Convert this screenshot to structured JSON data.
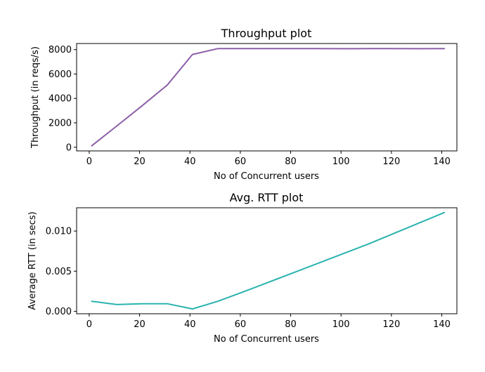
{
  "chart_data": [
    {
      "type": "line",
      "title": "Throughput plot",
      "xlabel": "No of Concurrent users",
      "ylabel": "Throughput (in reqs/s)",
      "xlim": [
        -5,
        146
      ],
      "ylim": [
        -300,
        8500
      ],
      "xticks": [
        0,
        20,
        40,
        60,
        80,
        100,
        120,
        140
      ],
      "yticks": [
        0,
        2000,
        4000,
        6000,
        8000
      ],
      "yticklabels": [
        "0",
        "2000",
        "4000",
        "6000",
        "8000"
      ],
      "grid": false,
      "series": [
        {
          "color": "#8c5fa8",
          "x": [
            1,
            11,
            21,
            31,
            41,
            51,
            61,
            71,
            81,
            91,
            101,
            111,
            121,
            131,
            141
          ],
          "y": [
            120,
            1750,
            3400,
            5100,
            7600,
            8080,
            8085,
            8080,
            8080,
            8080,
            8075,
            8080,
            8085,
            8075,
            8080
          ]
        }
      ]
    },
    {
      "type": "line",
      "title": "Avg. RTT plot",
      "xlabel": "No of Concurrent users",
      "ylabel": "Average RTT (in secs)",
      "xlim": [
        -5,
        146
      ],
      "ylim": [
        -0.0003,
        0.0129
      ],
      "xticks": [
        0,
        20,
        40,
        60,
        80,
        100,
        120,
        140
      ],
      "yticks": [
        0.0,
        0.005,
        0.01
      ],
      "yticklabels": [
        "0.000",
        "0.005",
        "0.010"
      ],
      "grid": false,
      "series": [
        {
          "color": "#2ab3b0",
          "x": [
            1,
            11,
            21,
            31,
            41,
            51,
            61,
            71,
            81,
            91,
            101,
            111,
            121,
            131,
            141
          ],
          "y": [
            0.00125,
            0.00085,
            0.00095,
            0.00095,
            0.0003,
            0.00125,
            0.0024,
            0.0036,
            0.0048,
            0.006,
            0.0072,
            0.0084,
            0.0097,
            0.011,
            0.0123
          ]
        }
      ]
    }
  ]
}
